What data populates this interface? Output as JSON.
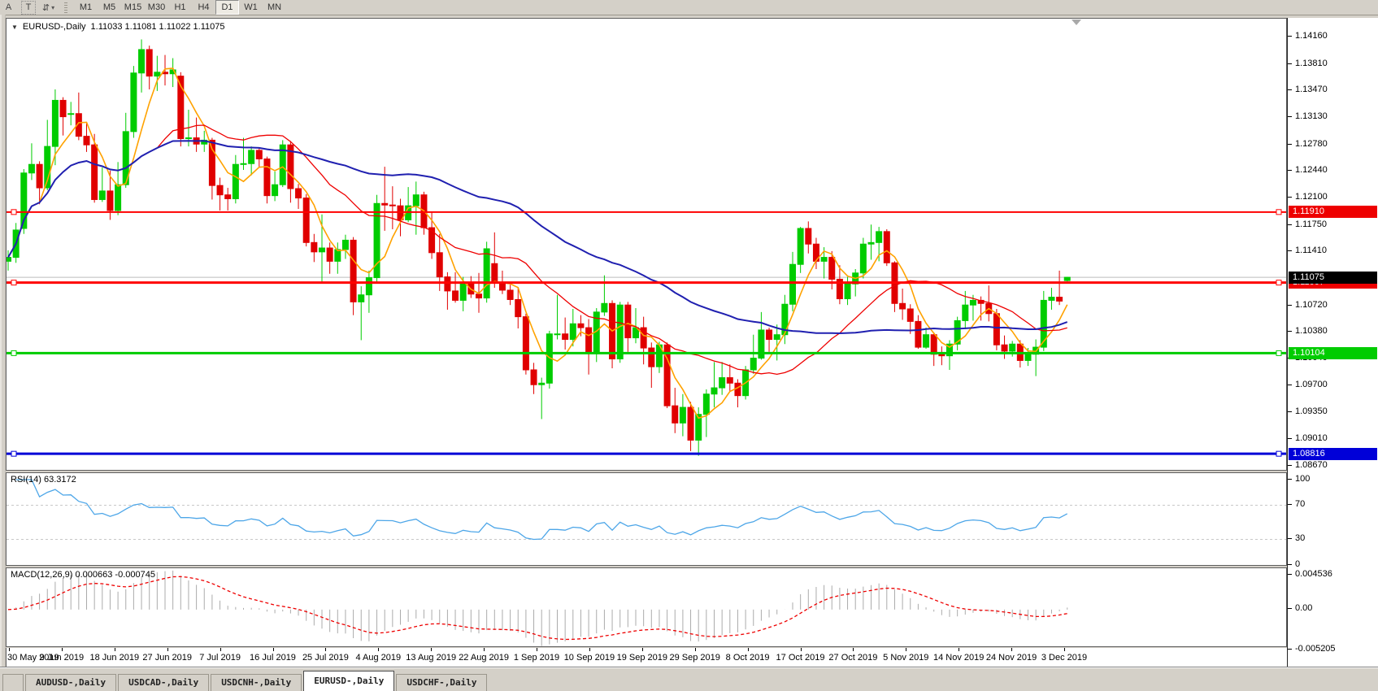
{
  "toolbar": {
    "tools": [
      {
        "name": "arrow-tool",
        "label": "A"
      },
      {
        "name": "text-tool",
        "label": "T"
      },
      {
        "name": "arrows-list-tool",
        "label": "⇵",
        "caret": "▾"
      }
    ],
    "timeframes": [
      "M1",
      "M5",
      "M15",
      "M30",
      "H1",
      "H4",
      "D1",
      "W1",
      "MN"
    ],
    "active_timeframe": "D1"
  },
  "chart_header": {
    "symbol_label": "EURUSD-,Daily",
    "ohlc": "1.11033 1.11081 1.11022 1.11075",
    "dropdown_glyph": "▼"
  },
  "price_axis": {
    "ticks": [
      "1.14160",
      "1.13810",
      "1.13470",
      "1.13130",
      "1.12780",
      "1.12440",
      "1.12100",
      "1.11750",
      "1.11410",
      "1.10720",
      "1.10380",
      "1.10040",
      "1.09700",
      "1.09350",
      "1.09010",
      "1.08670"
    ]
  },
  "price_markers": [
    {
      "label": "1.11075",
      "price": 1.11075,
      "bg": "#000000",
      "fg": "#ffffff",
      "type": "current-price"
    },
    {
      "label": "1.11910",
      "price": 1.1191,
      "bg": "#ee0000",
      "fg": "#ffffff",
      "type": "hline"
    },
    {
      "label": "1.11007",
      "price": 1.11007,
      "bg": "#ee0000",
      "fg": "#ffffff",
      "type": "hline"
    },
    {
      "label": "1.10104",
      "price": 1.10104,
      "bg": "#00cc00",
      "fg": "#ffffff",
      "type": "hline"
    },
    {
      "label": "1.08816",
      "price": 1.08816,
      "bg": "#0000d8",
      "fg": "#ffffff",
      "type": "hline"
    }
  ],
  "chart_data": {
    "type": "candlestick",
    "symbol": "EURUSD-",
    "timeframe": "Daily",
    "ylim": [
      1.0862,
      1.14385
    ],
    "up_color": "#00cc00",
    "down_color": "#e00000",
    "x_labels": [
      "30 May 2019",
      "9 Jun 2019",
      "18 Jun 2019",
      "27 Jun 2019",
      "7 Jul 2019",
      "16 Jul 2019",
      "25 Jul 2019",
      "4 Aug 2019",
      "13 Aug 2019",
      "22 Aug 2019",
      "1 Sep 2019",
      "10 Sep 2019",
      "19 Sep 2019",
      "29 Sep 2019",
      "8 Oct 2019",
      "17 Oct 2019",
      "27 Oct 2019",
      "5 Nov 2019",
      "14 Nov 2019",
      "24 Nov 2019",
      "3 Dec 2019"
    ],
    "candles": [
      [
        1.1128,
        1.1142,
        1.1116,
        1.1133
      ],
      [
        1.1133,
        1.1177,
        1.1126,
        1.1168
      ],
      [
        1.117,
        1.1246,
        1.1163,
        1.1241
      ],
      [
        1.1241,
        1.1279,
        1.1232,
        1.1252
      ],
      [
        1.1252,
        1.1256,
        1.1201,
        1.1222
      ],
      [
        1.1222,
        1.1309,
        1.1219,
        1.1275
      ],
      [
        1.1275,
        1.1348,
        1.1251,
        1.1334
      ],
      [
        1.1334,
        1.1338,
        1.1289,
        1.1313
      ],
      [
        1.1316,
        1.1332,
        1.1302,
        1.1317
      ],
      [
        1.1317,
        1.1344,
        1.1283,
        1.1288
      ],
      [
        1.1288,
        1.1305,
        1.1268,
        1.1277
      ],
      [
        1.1277,
        1.1291,
        1.1203,
        1.1207
      ],
      [
        1.1207,
        1.1248,
        1.1204,
        1.1218
      ],
      [
        1.1218,
        1.1244,
        1.1181,
        1.1193
      ],
      [
        1.1193,
        1.1255,
        1.1187,
        1.1226
      ],
      [
        1.1226,
        1.1318,
        1.1222,
        1.1294
      ],
      [
        1.1294,
        1.1378,
        1.1286,
        1.1369
      ],
      [
        1.1369,
        1.1412,
        1.1344,
        1.1399
      ],
      [
        1.1399,
        1.1404,
        1.1348,
        1.1365
      ],
      [
        1.1365,
        1.1391,
        1.1346,
        1.137
      ],
      [
        1.137,
        1.1392,
        1.1353,
        1.1368
      ],
      [
        1.1368,
        1.1388,
        1.1351,
        1.1373
      ],
      [
        1.1365,
        1.137,
        1.1275,
        1.1285
      ],
      [
        1.1285,
        1.1322,
        1.1275,
        1.1286
      ],
      [
        1.1286,
        1.1312,
        1.1268,
        1.1278
      ],
      [
        1.1278,
        1.1295,
        1.1268,
        1.1283
      ],
      [
        1.1283,
        1.1286,
        1.1207,
        1.1225
      ],
      [
        1.1225,
        1.1235,
        1.1193,
        1.1213
      ],
      [
        1.1213,
        1.1222,
        1.1193,
        1.1208
      ],
      [
        1.1208,
        1.1264,
        1.1202,
        1.1252
      ],
      [
        1.1252,
        1.1286,
        1.1245,
        1.1253
      ],
      [
        1.1253,
        1.1275,
        1.1238,
        1.127
      ],
      [
        1.127,
        1.1274,
        1.1249,
        1.1259
      ],
      [
        1.1259,
        1.1262,
        1.1202,
        1.1212
      ],
      [
        1.1212,
        1.1243,
        1.1205,
        1.1226
      ],
      [
        1.1226,
        1.1283,
        1.1223,
        1.1277
      ],
      [
        1.1277,
        1.1282,
        1.1203,
        1.1221
      ],
      [
        1.1221,
        1.1227,
        1.1195,
        1.1209
      ],
      [
        1.1209,
        1.1214,
        1.1147,
        1.1152
      ],
      [
        1.1152,
        1.1163,
        1.1127,
        1.114
      ],
      [
        1.114,
        1.1188,
        1.1101,
        1.1145
      ],
      [
        1.1145,
        1.1152,
        1.1112,
        1.1128
      ],
      [
        1.1128,
        1.1152,
        1.1112,
        1.1143
      ],
      [
        1.1143,
        1.1162,
        1.1131,
        1.1155
      ],
      [
        1.1155,
        1.1159,
        1.1059,
        1.1076
      ],
      [
        1.1076,
        1.1096,
        1.1027,
        1.1085
      ],
      [
        1.1085,
        1.1116,
        1.1062,
        1.1107
      ],
      [
        1.1107,
        1.1213,
        1.1101,
        1.1202
      ],
      [
        1.1202,
        1.1249,
        1.1167,
        1.12
      ],
      [
        1.12,
        1.1224,
        1.1169,
        1.1199
      ],
      [
        1.1199,
        1.1208,
        1.116,
        1.1181
      ],
      [
        1.1181,
        1.1223,
        1.1178,
        1.1199
      ],
      [
        1.1199,
        1.123,
        1.1162,
        1.1213
      ],
      [
        1.1213,
        1.1217,
        1.1162,
        1.1171
      ],
      [
        1.1171,
        1.1191,
        1.1131,
        1.1139
      ],
      [
        1.1139,
        1.1163,
        1.109,
        1.1108
      ],
      [
        1.1108,
        1.1114,
        1.1066,
        1.109
      ],
      [
        1.109,
        1.1114,
        1.1075,
        1.1078
      ],
      [
        1.1078,
        1.1108,
        1.1064,
        1.1099
      ],
      [
        1.1099,
        1.1109,
        1.1081,
        1.1086
      ],
      [
        1.1086,
        1.1113,
        1.1062,
        1.1081
      ],
      [
        1.1081,
        1.1153,
        1.1075,
        1.1144
      ],
      [
        1.1125,
        1.1165,
        1.1094,
        1.1101
      ],
      [
        1.1101,
        1.1116,
        1.1086,
        1.1091
      ],
      [
        1.1091,
        1.1098,
        1.1072,
        1.1079
      ],
      [
        1.1079,
        1.1094,
        1.1042,
        1.1057
      ],
      [
        1.1057,
        1.1061,
        1.0983,
        1.0989
      ],
      [
        1.0989,
        1.0998,
        1.0958,
        1.097
      ],
      [
        1.097,
        1.0979,
        1.0926,
        1.0972
      ],
      [
        1.0972,
        1.1039,
        1.0965,
        1.1035
      ],
      [
        1.1035,
        1.1085,
        1.1028,
        1.1035
      ],
      [
        1.1035,
        1.1056,
        1.1015,
        1.1028
      ],
      [
        1.1028,
        1.1067,
        1.1019,
        1.1048
      ],
      [
        1.1048,
        1.1059,
        1.1032,
        1.1043
      ],
      [
        1.1043,
        1.1054,
        1.0983,
        1.1011
      ],
      [
        1.1011,
        1.1068,
        1.0999,
        1.1063
      ],
      [
        1.1063,
        1.111,
        1.1058,
        1.1074
      ],
      [
        1.1074,
        1.1078,
        1.0991,
        1.1003
      ],
      [
        1.1003,
        1.1076,
        1.0998,
        1.1072
      ],
      [
        1.1072,
        1.1076,
        1.1012,
        1.103
      ],
      [
        1.103,
        1.1068,
        1.1023,
        1.1043
      ],
      [
        1.1043,
        1.1057,
        1.0996,
        1.1017
      ],
      [
        1.1017,
        1.1024,
        1.0966,
        1.0993
      ],
      [
        1.0993,
        1.1025,
        1.0985,
        1.1021
      ],
      [
        1.1021,
        1.1024,
        1.094,
        1.0943
      ],
      [
        1.0943,
        1.0966,
        1.0908,
        1.0921
      ],
      [
        1.0921,
        1.0958,
        1.0904,
        1.0941
      ],
      [
        1.0941,
        1.0948,
        1.0885,
        1.0899
      ],
      [
        1.0899,
        1.0941,
        1.0879,
        1.0932
      ],
      [
        1.0932,
        1.0964,
        1.0903,
        1.0958
      ],
      [
        1.0958,
        1.0999,
        1.0941,
        1.0966
      ],
      [
        1.0966,
        1.0999,
        1.0957,
        1.0979
      ],
      [
        1.0979,
        1.0996,
        1.0961,
        1.0972
      ],
      [
        1.0972,
        1.0977,
        1.0941,
        1.0956
      ],
      [
        1.0956,
        1.0994,
        1.0951,
        1.0989
      ],
      [
        1.0989,
        1.1034,
        1.0984,
        1.1004
      ],
      [
        1.1004,
        1.1063,
        1.1002,
        1.104
      ],
      [
        1.104,
        1.1043,
        1.1012,
        1.1028
      ],
      [
        1.1028,
        1.1047,
        1.1001,
        1.1034
      ],
      [
        1.1034,
        1.1085,
        1.1022,
        1.1073
      ],
      [
        1.1073,
        1.114,
        1.1064,
        1.1124
      ],
      [
        1.1124,
        1.1172,
        1.1113,
        1.117
      ],
      [
        1.117,
        1.1179,
        1.1138,
        1.115
      ],
      [
        1.115,
        1.1158,
        1.1118,
        1.1128
      ],
      [
        1.1128,
        1.1146,
        1.1106,
        1.1133
      ],
      [
        1.1133,
        1.1141,
        1.1092,
        1.1105
      ],
      [
        1.1105,
        1.1123,
        1.1073,
        1.108
      ],
      [
        1.108,
        1.1108,
        1.1072,
        1.1099
      ],
      [
        1.1099,
        1.1118,
        1.1083,
        1.1113
      ],
      [
        1.1113,
        1.1158,
        1.1106,
        1.115
      ],
      [
        1.115,
        1.1175,
        1.113,
        1.1152
      ],
      [
        1.1152,
        1.1172,
        1.1128,
        1.1166
      ],
      [
        1.1166,
        1.1169,
        1.1122,
        1.1126
      ],
      [
        1.1126,
        1.1128,
        1.1063,
        1.1074
      ],
      [
        1.1074,
        1.1093,
        1.1053,
        1.1067
      ],
      [
        1.1067,
        1.1073,
        1.1035,
        1.1051
      ],
      [
        1.1051,
        1.1059,
        1.1016,
        1.1018
      ],
      [
        1.1018,
        1.1043,
        1.1016,
        1.1034
      ],
      [
        1.1034,
        1.1037,
        1.0994,
        1.1009
      ],
      [
        1.1009,
        1.1019,
        1.0995,
        1.1007
      ],
      [
        1.1007,
        1.1027,
        1.0989,
        1.1022
      ],
      [
        1.1022,
        1.1057,
        1.1014,
        1.1052
      ],
      [
        1.1052,
        1.109,
        1.1041,
        1.1072
      ],
      [
        1.1072,
        1.1085,
        1.1052,
        1.1078
      ],
      [
        1.1078,
        1.1083,
        1.1052,
        1.1074
      ],
      [
        1.1074,
        1.1097,
        1.1051,
        1.1061
      ],
      [
        1.1061,
        1.1067,
        1.1014,
        1.1021
      ],
      [
        1.1021,
        1.1033,
        1.1003,
        1.1013
      ],
      [
        1.1013,
        1.1026,
        1.1006,
        1.1022
      ],
      [
        1.1022,
        1.1027,
        1.0992,
        1.1001
      ],
      [
        1.1001,
        1.1017,
        1.0994,
        1.1009
      ],
      [
        1.1009,
        1.1028,
        1.0981,
        1.1018
      ],
      [
        1.1018,
        1.109,
        1.1013,
        1.1078
      ],
      [
        1.1078,
        1.1094,
        1.1066,
        1.1082
      ],
      [
        1.1082,
        1.1116,
        1.1072,
        1.1077
      ],
      [
        1.11033,
        1.11081,
        1.11022,
        1.11075
      ]
    ],
    "moving_averages": [
      {
        "period": 5,
        "color": "#ffa200",
        "width": 1.6
      },
      {
        "period": 20,
        "color": "#ee0000",
        "width": 1.3
      },
      {
        "period": 50,
        "color": "#2020b0",
        "width": 2
      }
    ],
    "hlines": [
      {
        "price": 1.1191,
        "color": "#ff0000",
        "width": 2
      },
      {
        "price": 1.11007,
        "color": "#ff0000",
        "width": 3
      },
      {
        "price": 1.10104,
        "color": "#00cc00",
        "width": 3
      },
      {
        "price": 1.08816,
        "color": "#0000d8",
        "width": 3
      }
    ],
    "current_price": {
      "value": 1.11075,
      "line_color": "#bdbdbd"
    },
    "rsi": {
      "label": "RSI(14) 63.3172",
      "period": 14,
      "value": 63.3172,
      "range": [
        0,
        100
      ],
      "levels": [
        30,
        70
      ],
      "axis_ticks": [
        "100",
        "70",
        "30",
        "0"
      ],
      "color": "#4da6e8",
      "level_color": "#c8c8c8"
    },
    "macd": {
      "label": "MACD(12,26,9) 0.000663 -0.000745",
      "fast": 12,
      "slow": 26,
      "signal": 9,
      "main_value": 0.000663,
      "signal_value": -0.000745,
      "ylim": [
        -0.005205,
        0.004536
      ],
      "axis_ticks": [
        "0.004536",
        "0.00",
        "-0.005205"
      ],
      "histogram_color": "#ababab",
      "signal_color": "#ee0000"
    }
  },
  "tabs": {
    "items": [
      "AUDUSD-,Daily",
      "USDCAD-,Daily",
      "USDCNH-,Daily",
      "EURUSD-,Daily",
      "USDCHF-,Daily"
    ],
    "active": "EURUSD-,Daily"
  }
}
